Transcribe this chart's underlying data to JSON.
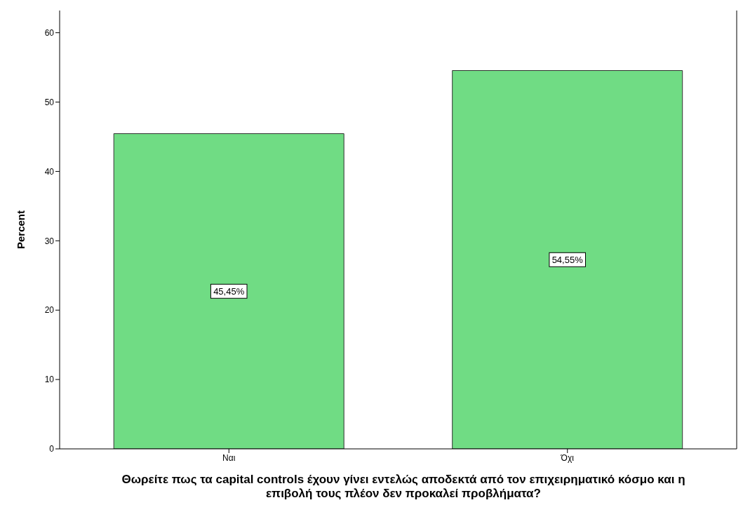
{
  "chart_data": {
    "type": "bar",
    "xlabel": "Θωρείτε πως τα capital controls έχουν γίνει εντελώς αποδεκτά από τον επιχειρηματικό κόσμο και η επιβολή τους πλέον δεν προκαλεί προβλήματα?",
    "ylabel": "Percent",
    "categories": [
      "Ναι",
      "Όχι"
    ],
    "values": [
      45.45,
      54.55
    ],
    "value_labels": [
      "45,45%",
      "54,55%"
    ],
    "color": "#70dc84",
    "ylim": [
      0,
      63.2
    ],
    "yticks": [
      0,
      10,
      20,
      30,
      40,
      50,
      60
    ],
    "grid": false,
    "legend": false
  }
}
